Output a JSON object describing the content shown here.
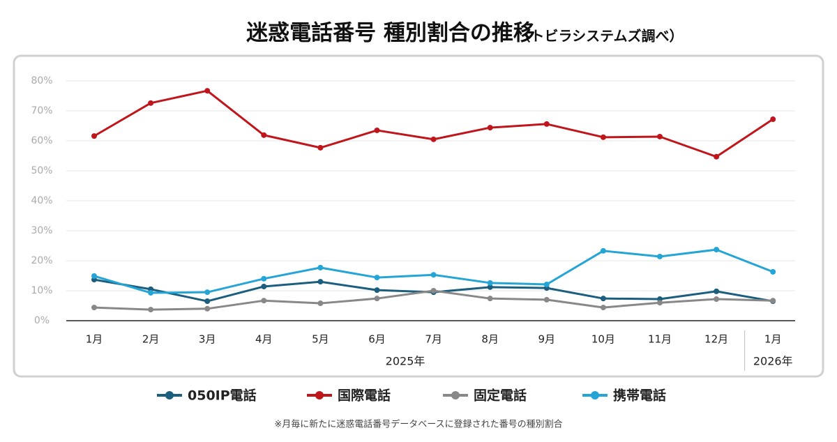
{
  "chart_data": {
    "type": "line",
    "title": "迷惑電話番号 種別割合の推移",
    "subtitle": "（トビラシステムズ調べ）",
    "categories": [
      "1月",
      "2月",
      "3月",
      "4月",
      "5月",
      "6月",
      "7月",
      "8月",
      "9月",
      "10月",
      "11月",
      "12月",
      "1月"
    ],
    "year_labels": [
      "2025年",
      "2026年"
    ],
    "series": [
      {
        "name": "050IP電話",
        "color": "#1b5e7e",
        "values": [
          13.7,
          10.5,
          6.5,
          11.4,
          13.0,
          10.2,
          9.5,
          11.2,
          10.9,
          7.4,
          7.2,
          9.8,
          6.5
        ]
      },
      {
        "name": "国際電話",
        "color": "#c0161b",
        "values": [
          61.6,
          72.6,
          76.7,
          61.9,
          57.7,
          63.5,
          60.5,
          64.4,
          65.6,
          61.2,
          61.4,
          54.7,
          67.2
        ]
      },
      {
        "name": "固定電話",
        "color": "#888888",
        "values": [
          4.4,
          3.7,
          4.0,
          6.7,
          5.8,
          7.4,
          10.0,
          7.4,
          7.0,
          4.4,
          6.0,
          7.2,
          6.7
        ]
      },
      {
        "name": "携帯電話",
        "color": "#25a4d6",
        "values": [
          14.9,
          9.3,
          9.5,
          14.0,
          17.7,
          14.4,
          15.3,
          12.6,
          12.1,
          23.3,
          21.4,
          23.7,
          16.3
        ]
      }
    ],
    "ylim": [
      0,
      80
    ],
    "yticks": [
      {
        "value": 0,
        "label": "0%"
      },
      {
        "value": 10,
        "label": "10%"
      },
      {
        "value": 20,
        "label": "20%"
      },
      {
        "value": 30,
        "label": "30%"
      },
      {
        "value": 40,
        "label": "40%"
      },
      {
        "value": 50,
        "label": "50%"
      },
      {
        "value": 60,
        "label": "60%"
      },
      {
        "value": 70,
        "label": "70%"
      },
      {
        "value": 80,
        "label": "80%"
      }
    ],
    "grid": true,
    "note": "※月毎に新たに迷惑電話番号データベースに登録された番号の種別割合"
  }
}
